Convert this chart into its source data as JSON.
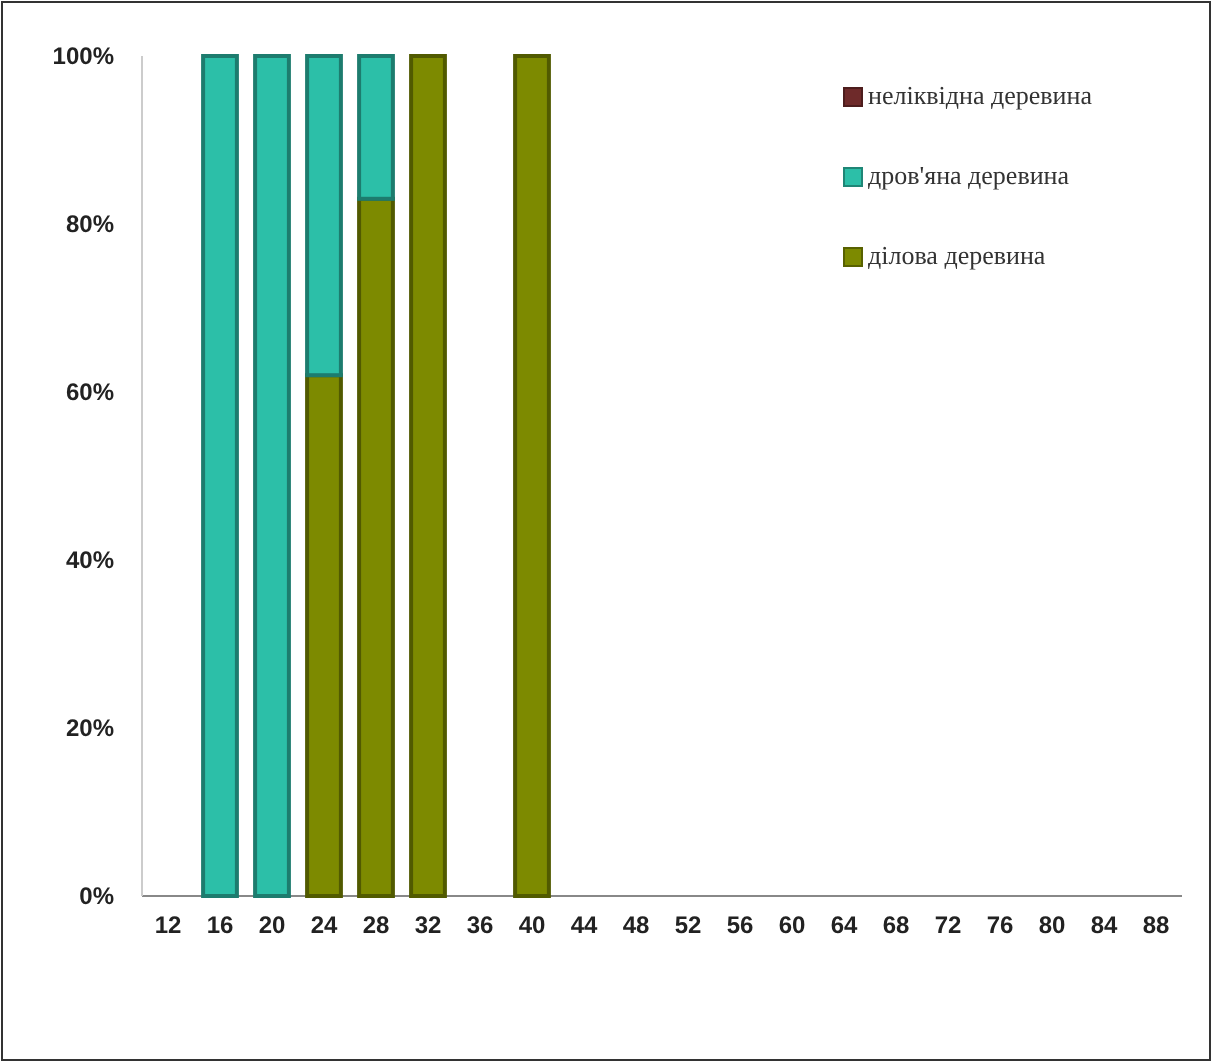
{
  "chart_data": {
    "type": "bar",
    "stacked": true,
    "categories": [
      "12",
      "16",
      "20",
      "24",
      "28",
      "32",
      "36",
      "40",
      "44",
      "48",
      "52",
      "56",
      "60",
      "64",
      "68",
      "72",
      "76",
      "80",
      "84",
      "88"
    ],
    "series": [
      {
        "name": "ділова деревина",
        "color": "#7d8a00",
        "values": [
          0,
          0,
          0,
          62,
          83,
          100,
          0,
          100,
          0,
          0,
          0,
          0,
          0,
          0,
          0,
          0,
          0,
          0,
          0,
          0
        ]
      },
      {
        "name": "дров'яна деревина",
        "color": "#2cbfa8",
        "values": [
          0,
          100,
          100,
          38,
          17,
          0,
          0,
          0,
          0,
          0,
          0,
          0,
          0,
          0,
          0,
          0,
          0,
          0,
          0,
          0
        ]
      },
      {
        "name": "неліквідна деревина",
        "color": "#6e2a2a",
        "values": [
          0,
          0,
          0,
          0,
          0,
          0,
          0,
          0,
          0,
          0,
          0,
          0,
          0,
          0,
          0,
          0,
          0,
          0,
          0,
          0
        ]
      }
    ],
    "ylim": [
      0,
      100
    ],
    "yticks": [
      {
        "value": 0,
        "label": "0%"
      },
      {
        "value": 20,
        "label": "20%"
      },
      {
        "value": 40,
        "label": "40%"
      },
      {
        "value": 60,
        "label": "60%"
      },
      {
        "value": 80,
        "label": "80%"
      },
      {
        "value": 100,
        "label": "100%"
      }
    ],
    "grid": false,
    "legend": "top right"
  }
}
